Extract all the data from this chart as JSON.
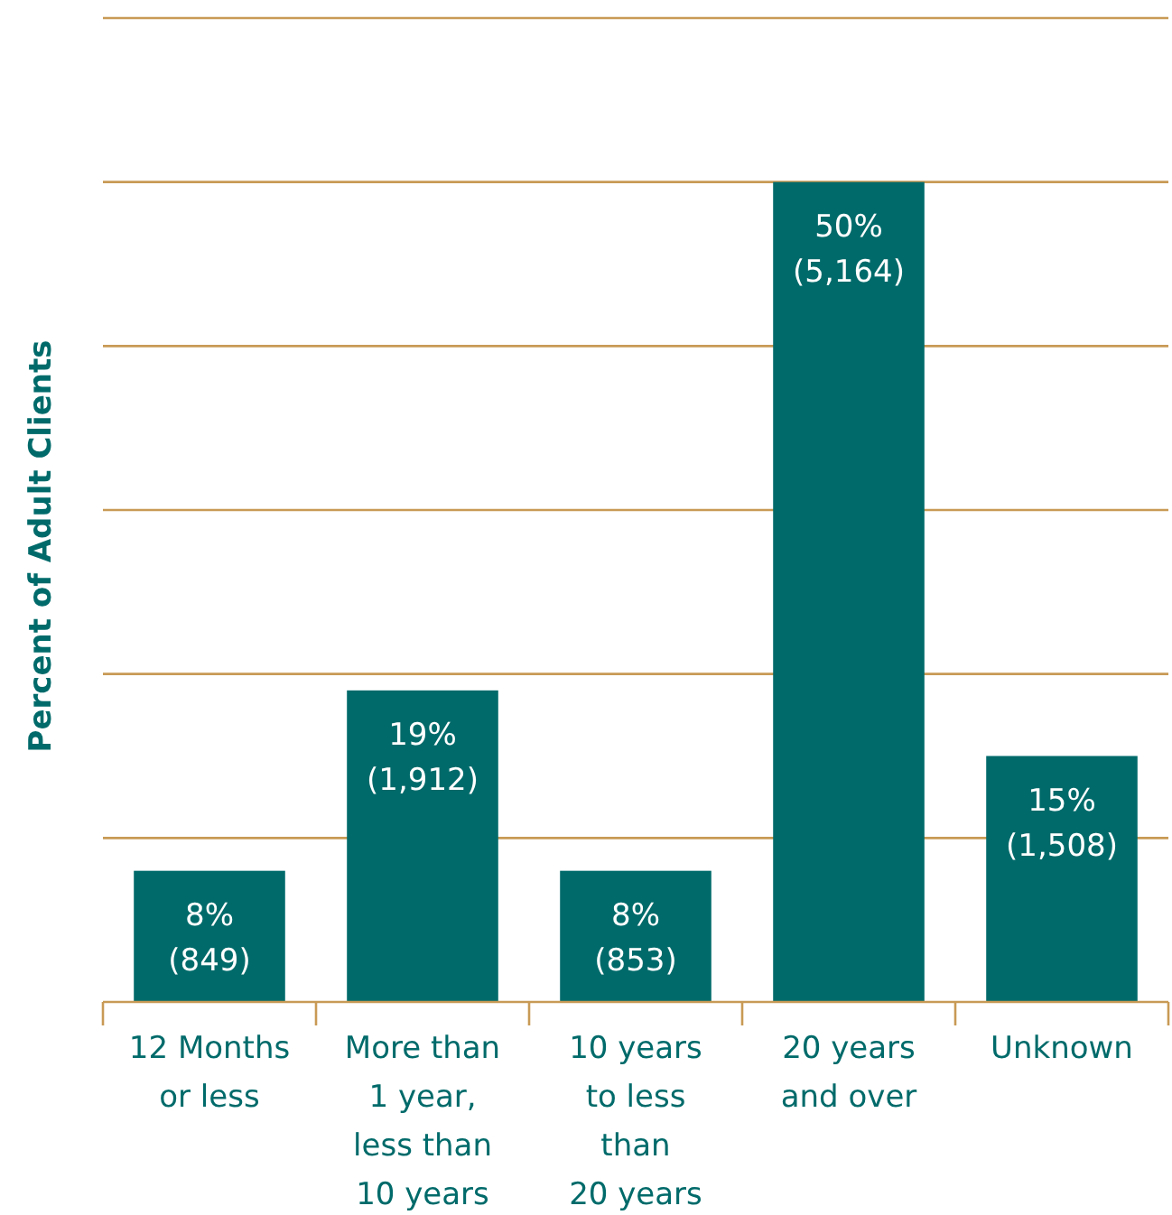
{
  "chart_data": {
    "type": "bar",
    "ylabel": "Percent of Adult Clients",
    "categories": [
      "12 Months\nor less",
      "More than\n1 year,\nless than\n10 years",
      "10 years\nto less\nthan\n20 years",
      "20 years\nand over",
      "Unknown"
    ],
    "values": [
      8,
      19,
      8,
      50,
      15
    ],
    "value_labels": [
      "8%\n(849)",
      "19%\n(1,912)",
      "8%\n(853)",
      "50%\n(5,164)",
      "15%\n(1,508)"
    ],
    "color": "#006a6a",
    "ylim": [
      0,
      60
    ],
    "yticks": [
      {
        "value": 0,
        "label": null
      },
      {
        "value": 10,
        "label": null
      },
      {
        "value": 20,
        "label": null
      },
      {
        "value": 30,
        "label": null
      },
      {
        "value": 40,
        "label": null
      },
      {
        "value": 50,
        "label": null
      },
      {
        "value": 60,
        "label": null
      }
    ],
    "tick_labels": "x",
    "grid": "y"
  }
}
